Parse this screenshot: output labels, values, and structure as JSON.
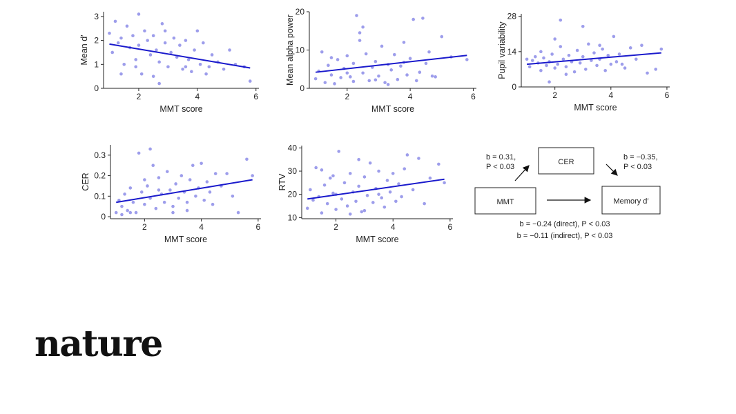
{
  "brand": {
    "logo_text": "nature"
  },
  "chart_data": [
    {
      "type": "scatter",
      "xlabel": "MMT score",
      "ylabel": "Mean d′",
      "xlim": [
        0.8,
        6.1
      ],
      "ylim": [
        0,
        3.2
      ],
      "xticks": [
        2,
        4,
        6
      ],
      "yticks": [
        0,
        1,
        2,
        3
      ],
      "xtick_labels": [
        "2",
        "4",
        "6"
      ],
      "ytick_labels": [
        "0",
        "1",
        "2",
        "3"
      ],
      "trend": [
        [
          1.0,
          1.85
        ],
        [
          5.8,
          0.85
        ]
      ],
      "point_color": "#8c8ce8",
      "line_color": "#1a1acc",
      "points": [
        [
          1.0,
          2.3
        ],
        [
          1.1,
          1.5
        ],
        [
          1.2,
          2.8
        ],
        [
          1.3,
          1.9
        ],
        [
          1.4,
          2.1
        ],
        [
          1.5,
          1.0
        ],
        [
          1.6,
          2.6
        ],
        [
          1.7,
          1.7
        ],
        [
          1.8,
          2.2
        ],
        [
          1.9,
          1.2
        ],
        [
          2.0,
          3.1
        ],
        [
          2.0,
          1.8
        ],
        [
          2.1,
          0.6
        ],
        [
          2.2,
          2.4
        ],
        [
          2.3,
          2.0
        ],
        [
          2.4,
          1.4
        ],
        [
          2.5,
          0.5
        ],
        [
          2.5,
          2.2
        ],
        [
          2.6,
          1.6
        ],
        [
          2.7,
          1.1
        ],
        [
          2.8,
          2.7
        ],
        [
          2.9,
          1.9
        ],
        [
          3.0,
          0.9
        ],
        [
          3.1,
          1.5
        ],
        [
          3.2,
          2.1
        ],
        [
          3.3,
          1.3
        ],
        [
          3.4,
          1.8
        ],
        [
          3.5,
          0.8
        ],
        [
          3.6,
          2.0
        ],
        [
          3.7,
          1.2
        ],
        [
          3.8,
          0.7
        ],
        [
          3.9,
          1.6
        ],
        [
          4.0,
          2.4
        ],
        [
          4.1,
          1.0
        ],
        [
          4.2,
          1.9
        ],
        [
          4.3,
          0.6
        ],
        [
          4.5,
          1.4
        ],
        [
          4.7,
          1.1
        ],
        [
          4.9,
          0.8
        ],
        [
          5.1,
          1.6
        ],
        [
          5.3,
          1.0
        ],
        [
          5.6,
          0.9
        ],
        [
          1.4,
          0.6
        ],
        [
          2.9,
          2.4
        ],
        [
          3.6,
          0.9
        ],
        [
          1.9,
          0.9
        ],
        [
          2.7,
          0.2
        ],
        [
          4.4,
          0.9
        ],
        [
          5.8,
          0.3
        ]
      ]
    },
    {
      "type": "scatter",
      "xlabel": "MMT score",
      "ylabel": "Mean alpha power",
      "xlim": [
        0.8,
        6.1
      ],
      "ylim": [
        0,
        20
      ],
      "xticks": [
        2,
        4,
        6
      ],
      "yticks": [
        0,
        10,
        20
      ],
      "xtick_labels": [
        "2",
        "4",
        "6"
      ],
      "ytick_labels": [
        "0",
        "10",
        "20"
      ],
      "trend": [
        [
          1.0,
          4.2
        ],
        [
          5.8,
          8.6
        ]
      ],
      "point_color": "#8c8ce8",
      "line_color": "#1a1acc",
      "points": [
        [
          1.0,
          2.5
        ],
        [
          1.1,
          4.5
        ],
        [
          1.2,
          9.5
        ],
        [
          1.3,
          1.5
        ],
        [
          1.4,
          6.0
        ],
        [
          1.5,
          3.5
        ],
        [
          1.6,
          1.2
        ],
        [
          1.7,
          7.5
        ],
        [
          1.8,
          2.8
        ],
        [
          1.9,
          5.2
        ],
        [
          2.0,
          8.5
        ],
        [
          2.1,
          3.0
        ],
        [
          2.2,
          1.8
        ],
        [
          2.2,
          6.5
        ],
        [
          2.3,
          19.0
        ],
        [
          2.4,
          14.5
        ],
        [
          2.5,
          16.0
        ],
        [
          2.5,
          4.0
        ],
        [
          2.6,
          9.0
        ],
        [
          2.7,
          2.0
        ],
        [
          2.8,
          5.5
        ],
        [
          2.9,
          7.0
        ],
        [
          3.0,
          3.2
        ],
        [
          3.1,
          11.0
        ],
        [
          3.2,
          1.5
        ],
        [
          3.3,
          6.2
        ],
        [
          3.4,
          4.8
        ],
        [
          3.5,
          8.8
        ],
        [
          3.6,
          2.3
        ],
        [
          3.7,
          5.8
        ],
        [
          3.8,
          12.0
        ],
        [
          3.9,
          3.5
        ],
        [
          4.0,
          7.8
        ],
        [
          4.1,
          18.0
        ],
        [
          4.2,
          2.0
        ],
        [
          4.3,
          4.2
        ],
        [
          4.4,
          18.3
        ],
        [
          4.5,
          6.5
        ],
        [
          4.6,
          9.5
        ],
        [
          4.8,
          3.0
        ],
        [
          5.0,
          13.5
        ],
        [
          5.3,
          8.2
        ],
        [
          5.8,
          7.5
        ],
        [
          2.4,
          12.5
        ],
        [
          1.5,
          8.0
        ],
        [
          3.3,
          1.0
        ],
        [
          4.7,
          3.2
        ],
        [
          2.0,
          4.0
        ],
        [
          2.9,
          2.2
        ],
        [
          3.8,
          6.8
        ]
      ]
    },
    {
      "type": "scatter",
      "xlabel": "MMT score",
      "ylabel": "Pupil variability",
      "xlim": [
        0.8,
        6.1
      ],
      "ylim": [
        0,
        29
      ],
      "xticks": [
        2,
        4,
        6
      ],
      "yticks": [
        0,
        14,
        28
      ],
      "xtick_labels": [
        "2",
        "4",
        "6"
      ],
      "ytick_labels": [
        "0",
        "14",
        "28"
      ],
      "trend": [
        [
          1.0,
          9.0
        ],
        [
          5.8,
          13.5
        ]
      ],
      "point_color": "#8c8ce8",
      "line_color": "#1a1acc",
      "points": [
        [
          1.0,
          11.0
        ],
        [
          1.1,
          8.0
        ],
        [
          1.2,
          10.5
        ],
        [
          1.3,
          12.0
        ],
        [
          1.4,
          9.5
        ],
        [
          1.5,
          6.5
        ],
        [
          1.6,
          11.5
        ],
        [
          1.7,
          8.5
        ],
        [
          1.8,
          10.0
        ],
        [
          1.9,
          13.0
        ],
        [
          2.0,
          7.5
        ],
        [
          2.1,
          9.0
        ],
        [
          2.2,
          26.5
        ],
        [
          2.2,
          16.0
        ],
        [
          2.3,
          11.0
        ],
        [
          2.4,
          8.0
        ],
        [
          2.5,
          12.5
        ],
        [
          2.6,
          10.0
        ],
        [
          2.7,
          6.0
        ],
        [
          2.8,
          14.5
        ],
        [
          2.9,
          9.5
        ],
        [
          3.0,
          12.0
        ],
        [
          3.1,
          7.0
        ],
        [
          3.2,
          17.0
        ],
        [
          3.3,
          10.5
        ],
        [
          3.4,
          13.5
        ],
        [
          3.5,
          8.5
        ],
        [
          3.6,
          11.0
        ],
        [
          3.7,
          15.0
        ],
        [
          3.8,
          6.5
        ],
        [
          3.9,
          12.5
        ],
        [
          4.0,
          9.0
        ],
        [
          4.1,
          20.0
        ],
        [
          4.2,
          10.0
        ],
        [
          4.3,
          13.0
        ],
        [
          4.5,
          7.5
        ],
        [
          4.7,
          15.5
        ],
        [
          4.9,
          11.0
        ],
        [
          5.1,
          16.5
        ],
        [
          5.3,
          5.5
        ],
        [
          5.6,
          7.0
        ],
        [
          5.8,
          15.0
        ],
        [
          1.8,
          2.0
        ],
        [
          2.4,
          5.0
        ],
        [
          3.0,
          24.0
        ],
        [
          1.5,
          14.0
        ],
        [
          2.0,
          19.0
        ],
        [
          3.6,
          16.5
        ],
        [
          4.4,
          9.0
        ]
      ]
    },
    {
      "type": "scatter",
      "xlabel": "MMT score",
      "ylabel": "CER",
      "xlim": [
        0.8,
        6.1
      ],
      "ylim": [
        -0.01,
        0.35
      ],
      "xticks": [
        2,
        4,
        6
      ],
      "yticks": [
        0,
        0.1,
        0.2,
        0.3
      ],
      "xtick_labels": [
        "2",
        "4",
        "6"
      ],
      "ytick_labels": [
        "0",
        "0.1",
        "0.2",
        "0.3"
      ],
      "trend": [
        [
          1.0,
          0.07
        ],
        [
          5.8,
          0.18
        ]
      ],
      "point_color": "#8c8ce8",
      "line_color": "#1a1acc",
      "points": [
        [
          1.0,
          0.02
        ],
        [
          1.1,
          0.08
        ],
        [
          1.2,
          0.05
        ],
        [
          1.3,
          0.11
        ],
        [
          1.4,
          0.03
        ],
        [
          1.5,
          0.14
        ],
        [
          1.6,
          0.07
        ],
        [
          1.7,
          0.02
        ],
        [
          1.8,
          0.31
        ],
        [
          1.9,
          0.12
        ],
        [
          2.0,
          0.06
        ],
        [
          2.1,
          0.15
        ],
        [
          2.2,
          0.33
        ],
        [
          2.2,
          0.09
        ],
        [
          2.3,
          0.25
        ],
        [
          2.4,
          0.04
        ],
        [
          2.5,
          0.19
        ],
        [
          2.6,
          0.11
        ],
        [
          2.7,
          0.07
        ],
        [
          2.8,
          0.22
        ],
        [
          2.9,
          0.13
        ],
        [
          3.0,
          0.05
        ],
        [
          3.1,
          0.16
        ],
        [
          3.2,
          0.09
        ],
        [
          3.3,
          0.2
        ],
        [
          3.4,
          0.12
        ],
        [
          3.5,
          0.03
        ],
        [
          3.6,
          0.18
        ],
        [
          3.7,
          0.25
        ],
        [
          3.8,
          0.1
        ],
        [
          3.9,
          0.14
        ],
        [
          4.0,
          0.26
        ],
        [
          4.1,
          0.08
        ],
        [
          4.2,
          0.17
        ],
        [
          4.3,
          0.12
        ],
        [
          4.5,
          0.21
        ],
        [
          4.7,
          0.15
        ],
        [
          4.9,
          0.21
        ],
        [
          5.1,
          0.1
        ],
        [
          5.3,
          0.02
        ],
        [
          5.6,
          0.28
        ],
        [
          5.8,
          0.2
        ],
        [
          1.5,
          0.02
        ],
        [
          2.0,
          0.18
        ],
        [
          2.5,
          0.13
        ],
        [
          3.0,
          0.02
        ],
        [
          3.5,
          0.07
        ],
        [
          4.4,
          0.06
        ],
        [
          1.2,
          0.01
        ]
      ]
    },
    {
      "type": "scatter",
      "xlabel": "MMT score",
      "ylabel": "RTV",
      "xlim": [
        0.8,
        6.1
      ],
      "ylim": [
        9.5,
        41
      ],
      "xticks": [
        2,
        4,
        6
      ],
      "yticks": [
        10,
        20,
        30,
        40
      ],
      "xtick_labels": [
        "2",
        "4",
        "6"
      ],
      "ytick_labels": [
        "10",
        "20",
        "30",
        "40"
      ],
      "trend": [
        [
          1.0,
          18.0
        ],
        [
          5.8,
          26.5
        ]
      ],
      "point_color": "#8c8ce8",
      "line_color": "#1a1acc",
      "points": [
        [
          1.0,
          14.0
        ],
        [
          1.1,
          22.0
        ],
        [
          1.2,
          17.5
        ],
        [
          1.3,
          31.5
        ],
        [
          1.4,
          19.0
        ],
        [
          1.5,
          12.0
        ],
        [
          1.6,
          24.0
        ],
        [
          1.7,
          16.0
        ],
        [
          1.8,
          27.0
        ],
        [
          1.9,
          20.5
        ],
        [
          2.0,
          13.5
        ],
        [
          2.1,
          38.5
        ],
        [
          2.2,
          18.0
        ],
        [
          2.3,
          25.0
        ],
        [
          2.4,
          15.0
        ],
        [
          2.5,
          29.0
        ],
        [
          2.6,
          21.0
        ],
        [
          2.7,
          17.0
        ],
        [
          2.8,
          23.5
        ],
        [
          2.9,
          12.5
        ],
        [
          3.0,
          27.5
        ],
        [
          3.1,
          19.5
        ],
        [
          3.2,
          33.5
        ],
        [
          3.3,
          16.5
        ],
        [
          3.4,
          22.5
        ],
        [
          3.5,
          30.0
        ],
        [
          3.6,
          18.5
        ],
        [
          3.7,
          14.5
        ],
        [
          3.8,
          26.0
        ],
        [
          3.9,
          21.0
        ],
        [
          4.0,
          29.0
        ],
        [
          4.1,
          17.0
        ],
        [
          4.2,
          24.5
        ],
        [
          4.3,
          19.0
        ],
        [
          4.5,
          37.0
        ],
        [
          4.7,
          22.0
        ],
        [
          4.9,
          35.5
        ],
        [
          5.1,
          16.0
        ],
        [
          5.3,
          27.0
        ],
        [
          5.6,
          33.0
        ],
        [
          5.8,
          25.0
        ],
        [
          1.5,
          30.5
        ],
        [
          2.0,
          20.0
        ],
        [
          2.5,
          11.5
        ],
        [
          3.0,
          13.0
        ],
        [
          3.5,
          20.0
        ],
        [
          4.4,
          31.0
        ],
        [
          1.9,
          28.0
        ],
        [
          2.8,
          35.0
        ]
      ]
    }
  ],
  "mediation": {
    "boxes": {
      "mmt": "MMT",
      "cer": "CER",
      "memory": "Memory d′"
    },
    "path_a": {
      "line1": "b = 0.31,",
      "line2": "P < 0.03"
    },
    "path_b": {
      "line1": "b = −0.35,",
      "line2": "P < 0.03"
    },
    "direct": "b = −0.24 (direct), P < 0.03",
    "indirect": "b = −0.11 (indirect), P < 0.03"
  }
}
